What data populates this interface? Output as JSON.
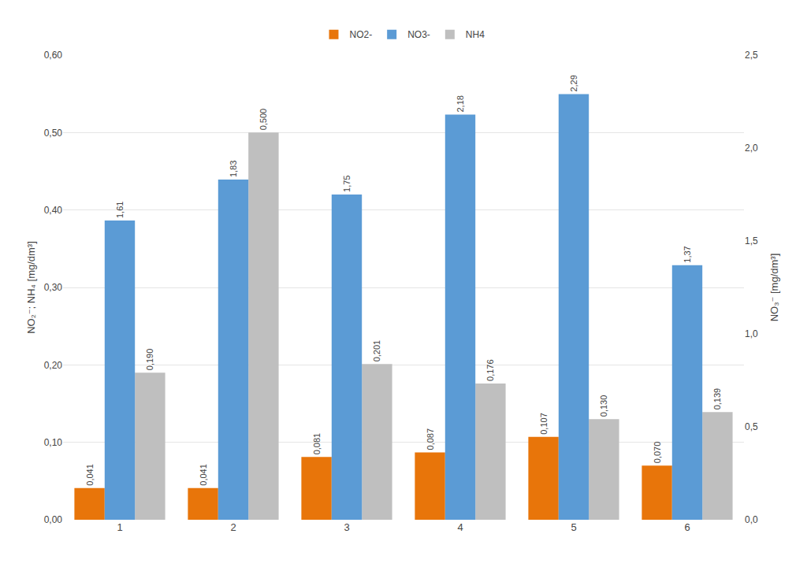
{
  "chart_data": {
    "type": "bar",
    "categories": [
      "1",
      "2",
      "3",
      "4",
      "5",
      "6"
    ],
    "series": [
      {
        "name": "NO2-",
        "color": "#E8750A",
        "axis": "y",
        "values": [
          0.041,
          0.041,
          0.081,
          0.087,
          0.107,
          0.07
        ],
        "value_labels": [
          "0,041",
          "0,041",
          "0,081",
          "0,087",
          "0,107",
          "0,070"
        ]
      },
      {
        "name": "NO3-",
        "color": "#5B9BD5",
        "axis": "y2",
        "values": [
          1.61,
          1.83,
          1.75,
          2.18,
          2.29,
          1.37
        ],
        "value_labels": [
          "1,61",
          "1,83",
          "1,75",
          "2,18",
          "2,29",
          "1,37"
        ]
      },
      {
        "name": "NH4",
        "color": "#BFBFBF",
        "axis": "y",
        "values": [
          0.19,
          0.5,
          0.201,
          0.176,
          0.13,
          0.139
        ],
        "value_labels": [
          "0,190",
          "0,500",
          "0,201",
          "0,176",
          "0,130",
          "0,139"
        ]
      }
    ],
    "ylabel": "NO₂⁻; NH₄ [mg/dm³]",
    "y2label": "NO₃⁻ [mg/dm³]",
    "ylim": [
      0.0,
      0.6
    ],
    "yticks": [
      {
        "value": 0.0,
        "label": "0,00"
      },
      {
        "value": 0.1,
        "label": "0,10"
      },
      {
        "value": 0.2,
        "label": "0,20"
      },
      {
        "value": 0.3,
        "label": "0,30"
      },
      {
        "value": 0.4,
        "label": "0,40"
      },
      {
        "value": 0.5,
        "label": "0,50"
      },
      {
        "value": 0.6,
        "label": "0,60"
      }
    ],
    "y2lim": [
      0.0,
      2.5
    ],
    "y2ticks": [
      {
        "value": 0.0,
        "label": "0,0"
      },
      {
        "value": 0.5,
        "label": "0,5"
      },
      {
        "value": 1.0,
        "label": "1,0"
      },
      {
        "value": 1.5,
        "label": "1,5"
      },
      {
        "value": 2.0,
        "label": "2,0"
      },
      {
        "value": 2.5,
        "label": "2,5"
      }
    ],
    "grid": true,
    "legend": "upper center",
    "data_labels": true
  }
}
